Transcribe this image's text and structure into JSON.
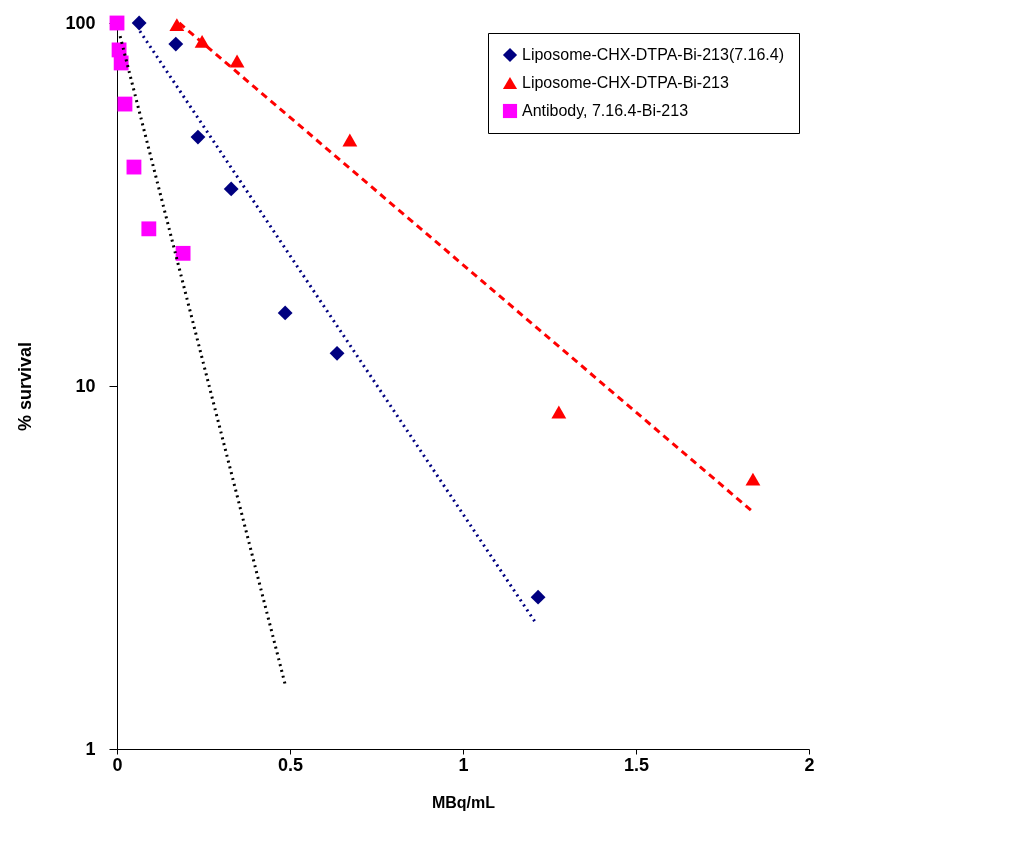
{
  "chart_data": {
    "type": "scatter",
    "xlabel": "MBq/mL",
    "ylabel": "% survival",
    "log": "y",
    "xlim": [
      0,
      2
    ],
    "xticks": [
      0,
      0.5,
      1,
      1.5,
      2
    ],
    "ylim": [
      1,
      100
    ],
    "yticks": [
      1,
      10,
      100
    ],
    "legend": "top right",
    "series": [
      {
        "name": "Liposome-CHX-DTPA-Bi-213(7.16.4)",
        "color": "#000080",
        "marker": "diamond",
        "x": [
          0.064,
          0.17,
          0.234,
          0.33,
          0.486,
          0.636,
          1.217
        ],
        "values": [
          100,
          87.5,
          48.5,
          34.9,
          15.9,
          12.3,
          2.62
        ]
      },
      {
        "name": "Liposome-CHX-DTPA-Bi-213",
        "color": "#ff0000",
        "marker": "triangle",
        "x": [
          0.173,
          0.246,
          0.347,
          0.673,
          1.277,
          1.838
        ],
        "values": [
          99,
          89,
          78.6,
          47.6,
          8.48,
          5.54
        ]
      },
      {
        "name": "Antibody, 7.16.4-Bi-213",
        "color": "#ff00ff",
        "marker": "square",
        "x": [
          0,
          0.006,
          0.012,
          0.023,
          0.049,
          0.092,
          0.191
        ],
        "values": [
          100,
          84.3,
          77.6,
          59.8,
          40.1,
          27.1,
          23.2
        ]
      },
      {
        "type": "line",
        "color": "#000080",
        "line_style": "dotted",
        "marker": "none",
        "x": [
          0.066,
          1.211
        ],
        "values": [
          95,
          2.22
        ]
      },
      {
        "type": "line",
        "color": "#ff0000",
        "line_style": "dashed",
        "marker": "none",
        "x": [
          0.18,
          1.838
        ],
        "values": [
          100,
          4.5
        ]
      },
      {
        "type": "line",
        "color": "#000000",
        "line_style": "dotted",
        "marker": "none",
        "x": [
          0.009,
          0.488
        ],
        "values": [
          92,
          1.48
        ]
      }
    ]
  }
}
